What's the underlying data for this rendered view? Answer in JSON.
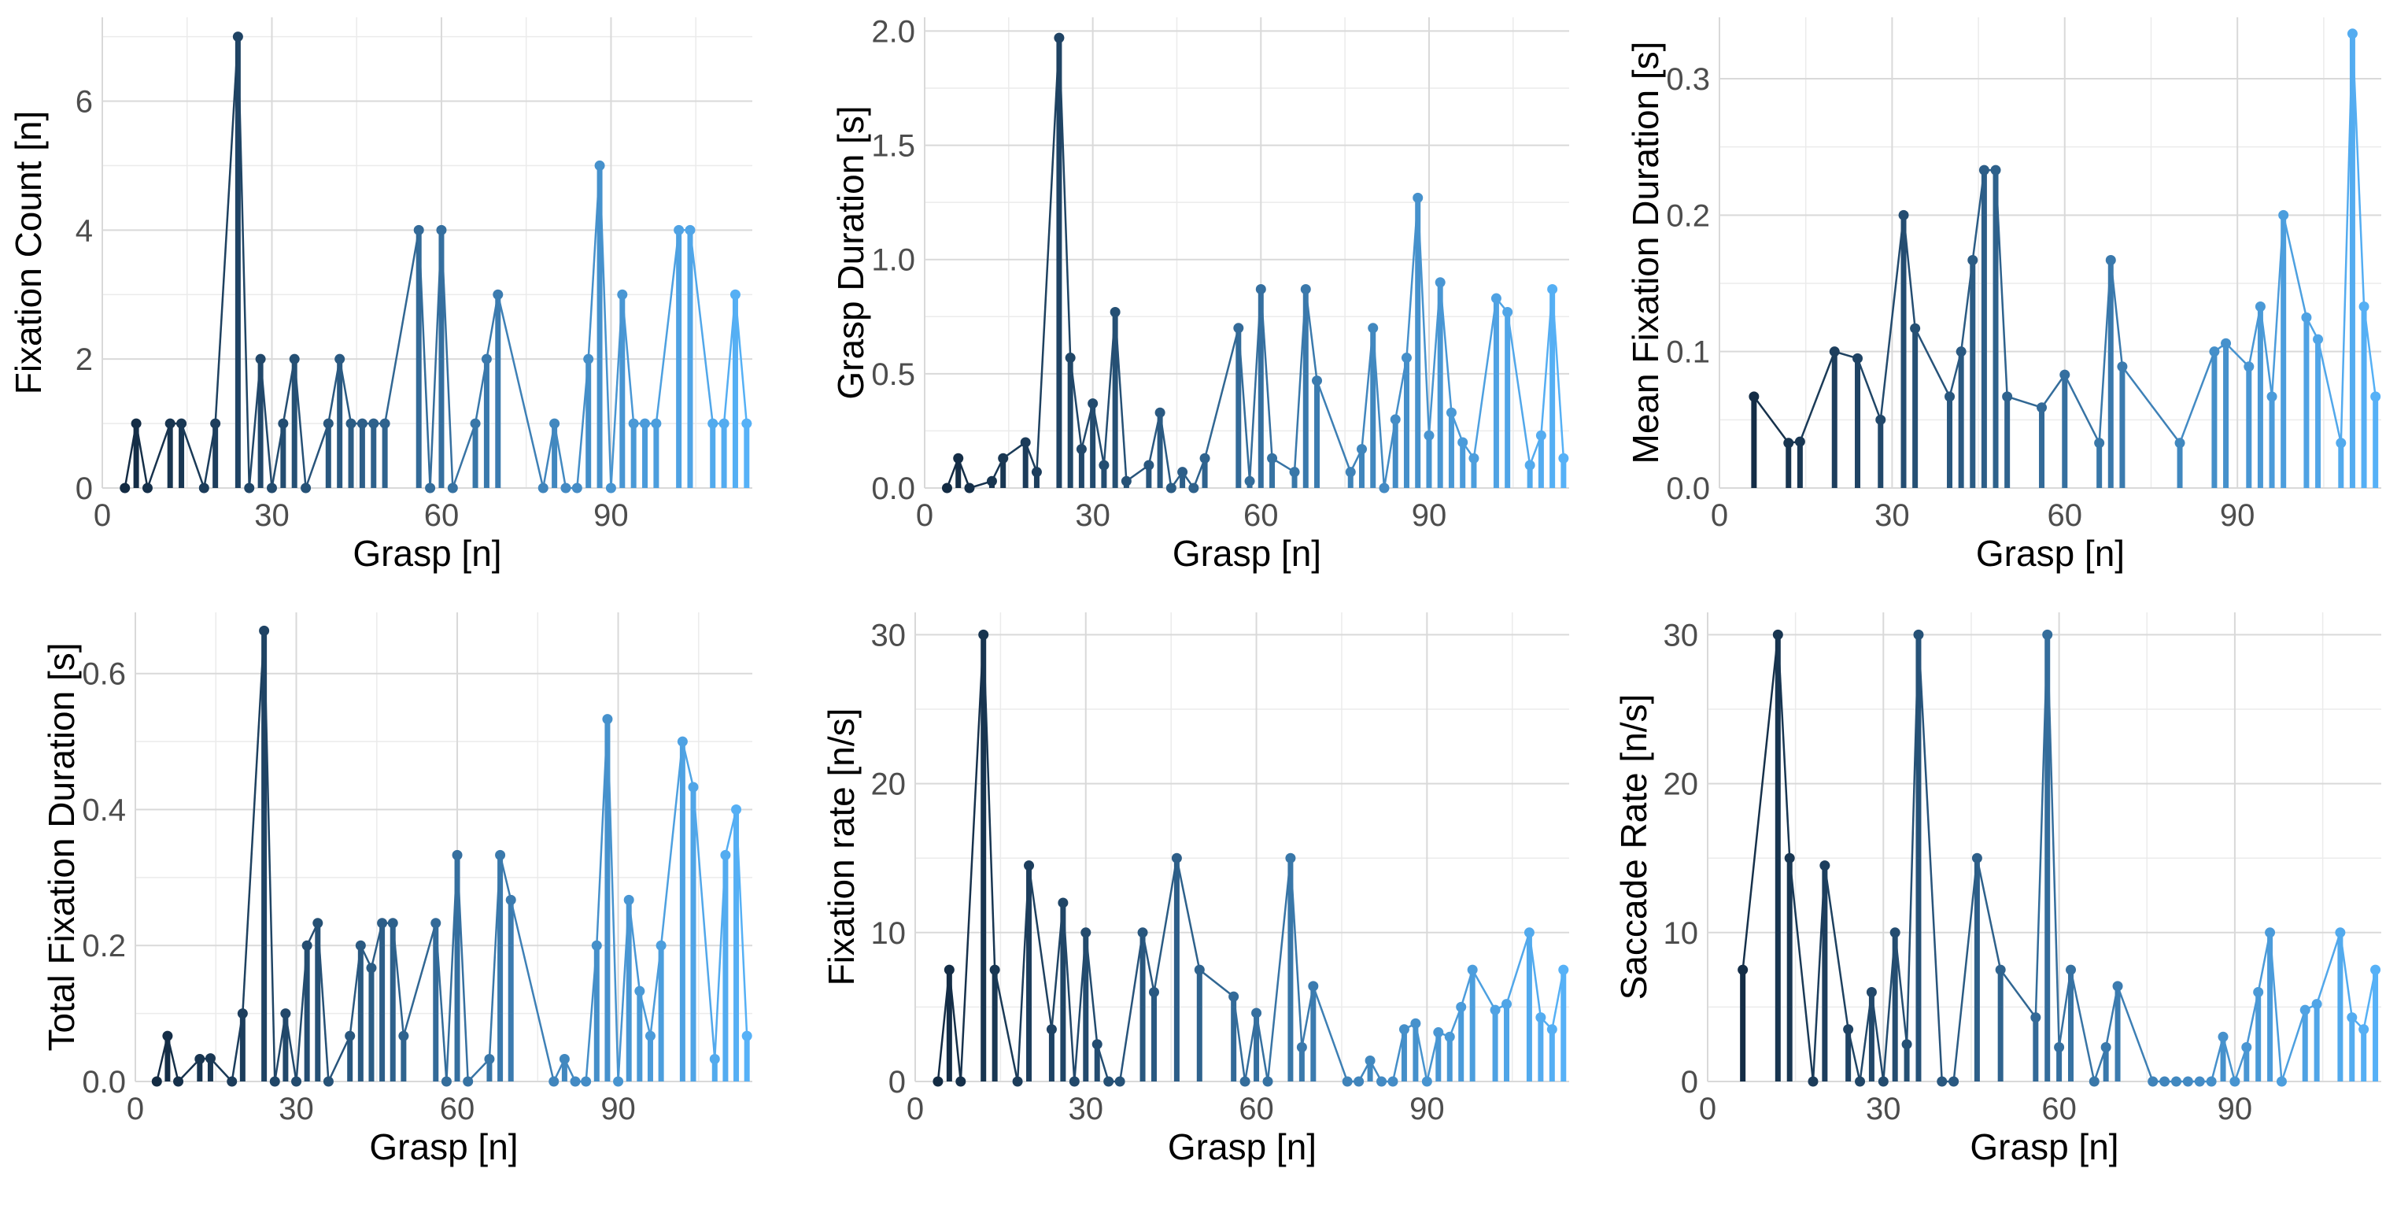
{
  "figure": {
    "color_dark": "#132b43",
    "color_light": "#56b1f7",
    "gridline_color": "#d9d9d9",
    "axis_text_color": "#4d4d4d"
  },
  "chart_data": [
    {
      "type": "line",
      "title": "",
      "xlabel": "Grasp [n]",
      "ylabel": "Fixation Count [n]",
      "xlim": [
        0,
        115
      ],
      "ylim": [
        0,
        7.3
      ],
      "xticks": [
        0,
        30,
        60,
        90
      ],
      "yticks": [
        0,
        2,
        4,
        6
      ],
      "ytick_labels": [
        "0",
        "2",
        "4",
        "6"
      ],
      "x": [
        4,
        6,
        8,
        12,
        14,
        18,
        20,
        24,
        26,
        28,
        30,
        32,
        34,
        36,
        40,
        42,
        44,
        46,
        48,
        50,
        56,
        58,
        60,
        62,
        66,
        68,
        70,
        78,
        80,
        82,
        84,
        86,
        88,
        90,
        92,
        94,
        96,
        98,
        102,
        104,
        108,
        110,
        112,
        114
      ],
      "y": [
        0,
        1,
        0,
        1,
        1,
        0,
        1,
        7,
        0,
        2,
        0,
        1,
        2,
        0,
        1,
        2,
        1,
        1,
        1,
        1,
        4,
        0,
        4,
        0,
        1,
        2,
        3,
        0,
        1,
        0,
        0,
        2,
        5,
        0,
        3,
        1,
        1,
        1,
        4,
        4,
        1,
        1,
        3,
        1
      ]
    },
    {
      "type": "line",
      "title": "",
      "xlabel": "Grasp [n]",
      "ylabel": "Grasp Duration [s]",
      "xlim": [
        0,
        115
      ],
      "ylim": [
        0,
        2.06
      ],
      "xticks": [
        0,
        30,
        60,
        90
      ],
      "yticks": [
        0,
        0.5,
        1,
        1.5,
        2
      ],
      "ytick_labels": [
        "0.0",
        "0.5",
        "1.0",
        "1.5",
        "2.0"
      ],
      "x": [
        4,
        6,
        8,
        12,
        14,
        18,
        20,
        24,
        26,
        28,
        30,
        32,
        34,
        36,
        40,
        42,
        44,
        46,
        48,
        50,
        56,
        58,
        60,
        62,
        66,
        68,
        70,
        76,
        78,
        80,
        82,
        84,
        86,
        88,
        90,
        92,
        94,
        96,
        98,
        102,
        104,
        108,
        110,
        112,
        114
      ],
      "y": [
        0,
        0.13,
        0,
        0.03,
        0.13,
        0.2,
        0.07,
        1.97,
        0.57,
        0.17,
        0.37,
        0.1,
        0.77,
        0.03,
        0.1,
        0.33,
        0,
        0.07,
        0,
        0.13,
        0.7,
        0.03,
        0.87,
        0.13,
        0.07,
        0.87,
        0.47,
        0.07,
        0.17,
        0.7,
        0,
        0.3,
        0.57,
        1.27,
        0.23,
        0.9,
        0.33,
        0.2,
        0.13,
        0.83,
        0.77,
        0.1,
        0.23,
        0.87,
        0.13
      ]
    },
    {
      "type": "line",
      "title": "",
      "xlabel": "Grasp [n]",
      "ylabel": "Mean Fixation Duration [s]",
      "xlim": [
        0,
        115
      ],
      "ylim": [
        0,
        0.345
      ],
      "xticks": [
        0,
        30,
        60,
        90
      ],
      "yticks": [
        0,
        0.1,
        0.2,
        0.3
      ],
      "ytick_labels": [
        "0.0",
        "0.1",
        "0.2",
        "0.3"
      ],
      "x": [
        6,
        12,
        14,
        20,
        24,
        28,
        32,
        34,
        40,
        42,
        44,
        46,
        48,
        50,
        56,
        60,
        66,
        68,
        70,
        80,
        86,
        88,
        92,
        94,
        96,
        98,
        102,
        104,
        108,
        110,
        112,
        114
      ],
      "y": [
        0.067,
        0.033,
        0.034,
        0.1,
        0.095,
        0.05,
        0.2,
        0.117,
        0.067,
        0.1,
        0.167,
        0.233,
        0.233,
        0.067,
        0.059,
        0.083,
        0.033,
        0.167,
        0.089,
        0.033,
        0.1,
        0.106,
        0.089,
        0.133,
        0.067,
        0.2,
        0.125,
        0.109,
        0.033,
        0.333,
        0.133,
        0.067
      ]
    },
    {
      "type": "line",
      "title": "",
      "xlabel": "Grasp [n]",
      "ylabel": "Total Fixation Duration [s]",
      "xlim": [
        0,
        115
      ],
      "ylim": [
        0,
        0.69
      ],
      "xticks": [
        0,
        30,
        60,
        90
      ],
      "yticks": [
        0,
        0.2,
        0.4,
        0.6
      ],
      "ytick_labels": [
        "0.0",
        "0.2",
        "0.4",
        "0.6"
      ],
      "x": [
        4,
        6,
        8,
        12,
        14,
        18,
        20,
        24,
        26,
        28,
        30,
        32,
        34,
        36,
        40,
        42,
        44,
        46,
        48,
        50,
        56,
        58,
        60,
        62,
        66,
        68,
        70,
        78,
        80,
        82,
        84,
        86,
        88,
        90,
        92,
        94,
        96,
        98,
        102,
        104,
        108,
        110,
        112,
        114
      ],
      "y": [
        0,
        0.067,
        0,
        0.033,
        0.034,
        0,
        0.1,
        0.663,
        0,
        0.1,
        0,
        0.2,
        0.233,
        0,
        0.067,
        0.2,
        0.167,
        0.233,
        0.233,
        0.067,
        0.233,
        0,
        0.333,
        0,
        0.033,
        0.333,
        0.267,
        0,
        0.033,
        0,
        0,
        0.2,
        0.533,
        0,
        0.267,
        0.133,
        0.067,
        0.2,
        0.5,
        0.433,
        0.033,
        0.333,
        0.4,
        0.067
      ]
    },
    {
      "type": "line",
      "title": "",
      "xlabel": "Grasp [n]",
      "ylabel": "Fixation rate [n/s]",
      "xlim": [
        0,
        115
      ],
      "ylim": [
        0,
        31.5
      ],
      "xticks": [
        0,
        30,
        60,
        90
      ],
      "yticks": [
        0,
        10,
        20,
        30
      ],
      "ytick_labels": [
        "0",
        "10",
        "20",
        "30"
      ],
      "x": [
        4,
        6,
        8,
        12,
        14,
        18,
        20,
        24,
        26,
        28,
        30,
        32,
        34,
        36,
        40,
        42,
        46,
        50,
        56,
        58,
        60,
        62,
        66,
        68,
        70,
        76,
        78,
        80,
        82,
        84,
        86,
        88,
        90,
        92,
        94,
        96,
        98,
        102,
        104,
        108,
        110,
        112,
        114
      ],
      "y": [
        0,
        7.5,
        0,
        30,
        7.5,
        0,
        14.5,
        3.5,
        12,
        0,
        10,
        2.5,
        0,
        0,
        10,
        6,
        15,
        7.5,
        5.7,
        0,
        4.6,
        0,
        15,
        2.3,
        6.4,
        0,
        0,
        1.4,
        0,
        0,
        3.5,
        3.9,
        0,
        3.3,
        3,
        5,
        7.5,
        4.8,
        5.2,
        10,
        4.3,
        3.5,
        7.5
      ]
    },
    {
      "type": "line",
      "title": "",
      "xlabel": "Grasp [n]",
      "ylabel": "Saccade Rate [n/s]",
      "xlim": [
        0,
        115
      ],
      "ylim": [
        0,
        31.5
      ],
      "xticks": [
        0,
        30,
        60,
        90
      ],
      "yticks": [
        0,
        10,
        20,
        30
      ],
      "ytick_labels": [
        "0",
        "10",
        "20",
        "30"
      ],
      "x": [
        6,
        12,
        14,
        18,
        20,
        24,
        26,
        28,
        30,
        32,
        34,
        36,
        40,
        42,
        46,
        50,
        56,
        58,
        60,
        62,
        66,
        68,
        70,
        76,
        78,
        80,
        82,
        84,
        86,
        88,
        90,
        92,
        94,
        96,
        98,
        102,
        104,
        108,
        110,
        112,
        114
      ],
      "y": [
        7.5,
        30,
        15,
        0,
        14.5,
        3.5,
        0,
        6,
        0,
        10,
        2.5,
        30,
        0,
        0,
        15,
        7.5,
        4.3,
        30,
        2.3,
        7.5,
        0,
        2.3,
        6.4,
        0,
        0,
        0,
        0,
        0,
        0,
        3,
        0,
        2.3,
        6,
        10,
        0,
        4.8,
        5.2,
        10,
        4.3,
        3.5,
        7.5
      ]
    }
  ]
}
